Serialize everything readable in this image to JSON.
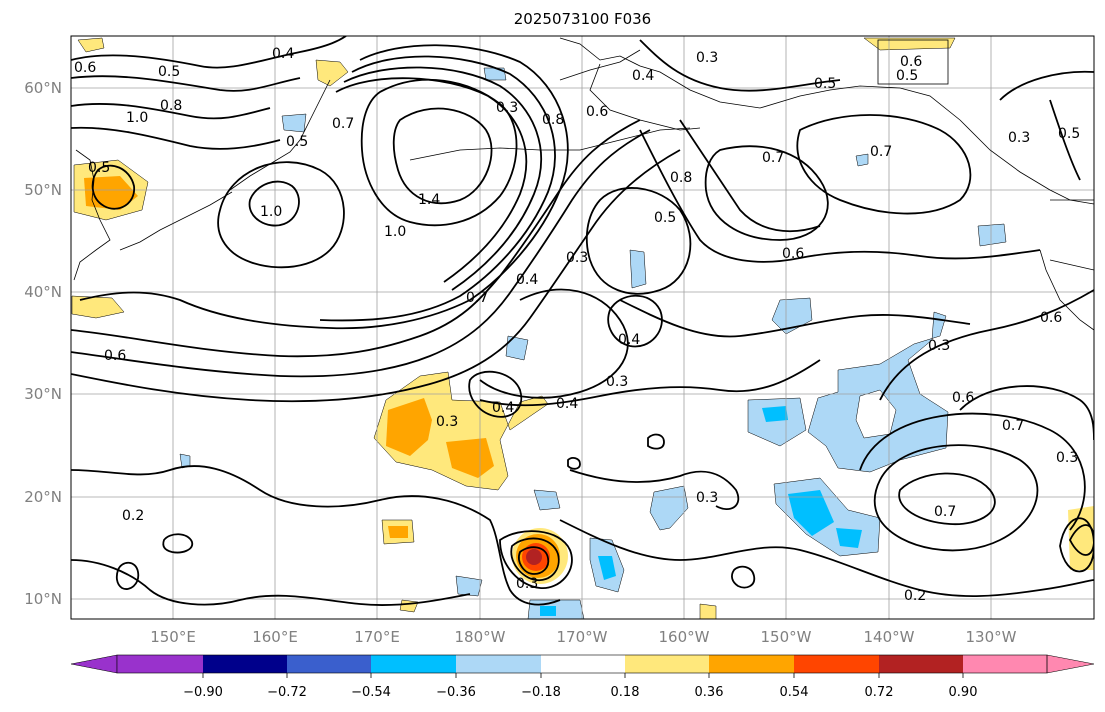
{
  "title": "2025073100 F036",
  "lat_labels": [
    "60°N",
    "50°N",
    "40°N",
    "30°N",
    "20°N",
    "10°N"
  ],
  "lon_labels": [
    "150°E",
    "160°E",
    "170°E",
    "180°W",
    "170°W",
    "160°W",
    "150°W",
    "140°W",
    "130°W"
  ],
  "colorbar": {
    "labels": [
      "−0.90",
      "−0.72",
      "−0.54",
      "−0.36",
      "−0.18",
      "0.18",
      "0.36",
      "0.54",
      "0.72",
      "0.90"
    ],
    "colors": [
      "#9932cc",
      "#00008b",
      "#3a5fcd",
      "#00bfff",
      "#add8f6",
      "#ffffff",
      "#ffe87c",
      "#ffa500",
      "#ff4500",
      "#b22222",
      "#ff88b0"
    ]
  },
  "contour_labels": [
    "0.4",
    "0.5",
    "0.6",
    "0.8",
    "1.0",
    "0.5",
    "0.7",
    "1.4",
    "1.0",
    "0.7",
    "0.4",
    "0.3",
    "0.8",
    "0.3",
    "0.6",
    "0.8",
    "0.5",
    "0.7",
    "0.7",
    "0.3",
    "0.5",
    "0.6",
    "0.5",
    "0.3",
    "0.4",
    "1.0",
    "0.6",
    "0.5",
    "0.4",
    "0.3",
    "0.4",
    "0.4",
    "0.3",
    "0.3",
    "0.6",
    "0.7",
    "0.3",
    "0.7",
    "0.2",
    "0.3",
    "0.2",
    "0.3",
    "0.6",
    "0.5",
    "0.6"
  ]
}
